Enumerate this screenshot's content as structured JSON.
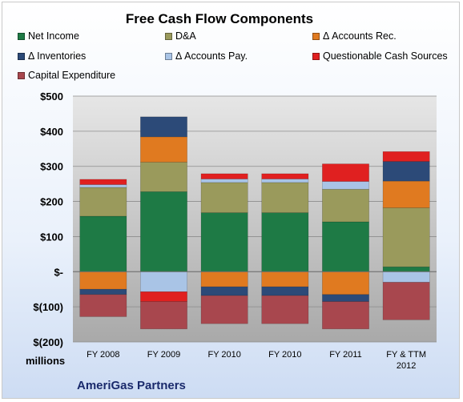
{
  "chart_data": {
    "type": "bar",
    "stacked": true,
    "title": "Free Cash Flow Components",
    "units_label": "millions",
    "source_label": "AmeriGas Partners",
    "categories": [
      "FY 2008",
      "FY 2009",
      "FY 2010",
      "FY 2010",
      "FY 2011",
      "FY & TTM 2012"
    ],
    "y_tick_labels": [
      "$(200)",
      "$(100)",
      "$-",
      "$100",
      "$200",
      "$300",
      "$400",
      "$500"
    ],
    "ylim": [
      -200,
      500
    ],
    "grid": true,
    "legend_position": "top",
    "series": [
      {
        "name": "Net Income",
        "color": "#1e7a45",
        "values": [
          158,
          228,
          168,
          168,
          142,
          14
        ]
      },
      {
        "name": "D&A",
        "color": "#9a9a5c",
        "values": [
          82,
          84,
          86,
          86,
          93,
          168
        ]
      },
      {
        "name": "Δ Accounts Rec.",
        "color": "#e07a20",
        "values": [
          -50,
          72,
          -43,
          -43,
          -65,
          76
        ]
      },
      {
        "name": "Δ Inventories",
        "color": "#2c4a78",
        "values": [
          -15,
          57,
          -25,
          -25,
          -20,
          56
        ]
      },
      {
        "name": "Δ Accounts Pay.",
        "color": "#a9c4e6",
        "values": [
          8,
          -57,
          10,
          10,
          22,
          -30
        ]
      },
      {
        "name": "Questionable Cash Sources",
        "color": "#e02020",
        "values": [
          15,
          -28,
          15,
          15,
          50,
          28
        ]
      },
      {
        "name": "Capital Expenditure",
        "color": "#a8474e",
        "values": [
          -63,
          -78,
          -80,
          -80,
          -78,
          -107
        ]
      }
    ]
  }
}
